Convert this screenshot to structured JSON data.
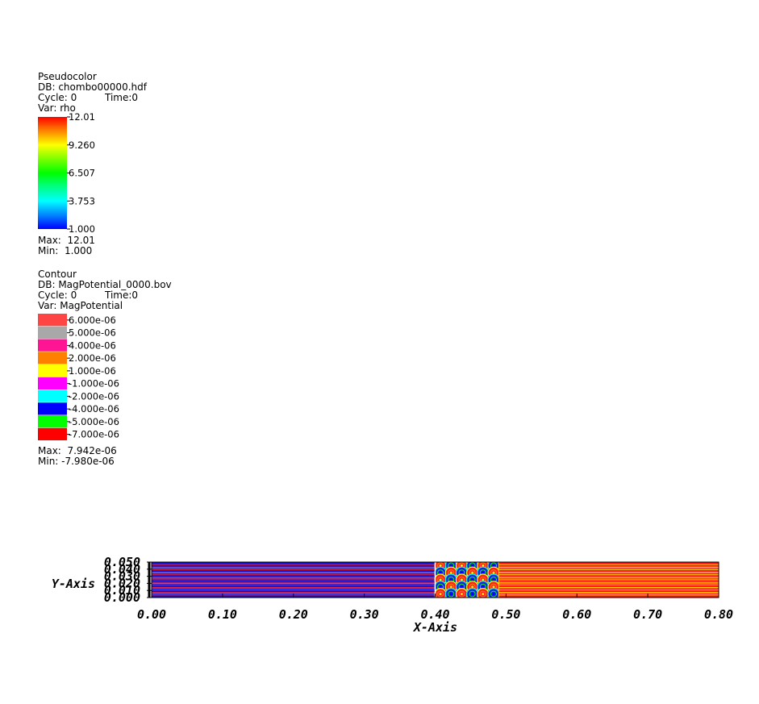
{
  "pseudocolor": {
    "plot_type": "Pseudocolor",
    "db": "DB: chombo00000.hdf",
    "cycle": "Cycle: 0",
    "time": "Time:0",
    "var": "Var: rho",
    "ticks": [
      "12.01",
      "9.260",
      "6.507",
      "3.753",
      "1.000"
    ],
    "max": "Max:  12.01",
    "min": "Min:  1.000"
  },
  "contour": {
    "plot_type": "Contour",
    "db": "DB: MagPotential_0000.bov",
    "cycle": "Cycle: 0",
    "time": "Time:0",
    "var": "Var: MagPotential",
    "levels": [
      {
        "label": "6.000e-06",
        "color": "#ff4444"
      },
      {
        "label": "5.000e-06",
        "color": "#a8a8a8"
      },
      {
        "label": "4.000e-06",
        "color": "#ff1493"
      },
      {
        "label": "2.000e-06",
        "color": "#ff8000"
      },
      {
        "label": "1.000e-06",
        "color": "#ffff00"
      },
      {
        "label": "-1.000e-06",
        "color": "#ff00ff"
      },
      {
        "label": "-2.000e-06",
        "color": "#00ffff"
      },
      {
        "label": "-4.000e-06",
        "color": "#0000ff"
      },
      {
        "label": "-5.000e-06",
        "color": "#00ff00"
      },
      {
        "label": "-7.000e-06",
        "color": "#ff0000"
      }
    ],
    "max": "Max:  7.942e-06",
    "min": "Min: -7.980e-06"
  },
  "chart_data": {
    "type": "heatmap",
    "xlabel": "X-Axis",
    "ylabel": "Y-Axis",
    "xlim": [
      0.0,
      0.8
    ],
    "ylim": [
      0.0,
      0.05
    ],
    "x_ticks": [
      "0.00",
      "0.10",
      "0.20",
      "0.30",
      "0.40",
      "0.50",
      "0.60",
      "0.70",
      "0.80"
    ],
    "x_tick_values": [
      0.0,
      0.1,
      0.2,
      0.3,
      0.4,
      0.5,
      0.6,
      0.7,
      0.8
    ],
    "y_ticks": [
      "0.050",
      "0.040",
      "0.030",
      "0.020",
      "0.010",
      "0.000"
    ],
    "y_tick_values": [
      0.05,
      0.04,
      0.03,
      0.02,
      0.01,
      0.0
    ],
    "regions": [
      {
        "x_range": [
          0.0,
          0.4
        ],
        "fill": "#1010d0",
        "stripe": "#ff2020",
        "pattern": "horizontal-stripes"
      },
      {
        "x_range": [
          0.4,
          0.49
        ],
        "fill": "#1010d0",
        "pattern": "vortices"
      },
      {
        "x_range": [
          0.49,
          0.8
        ],
        "fill": "#ff1010",
        "stripe": "#ffe000",
        "pattern": "horizontal-stripes"
      }
    ]
  }
}
